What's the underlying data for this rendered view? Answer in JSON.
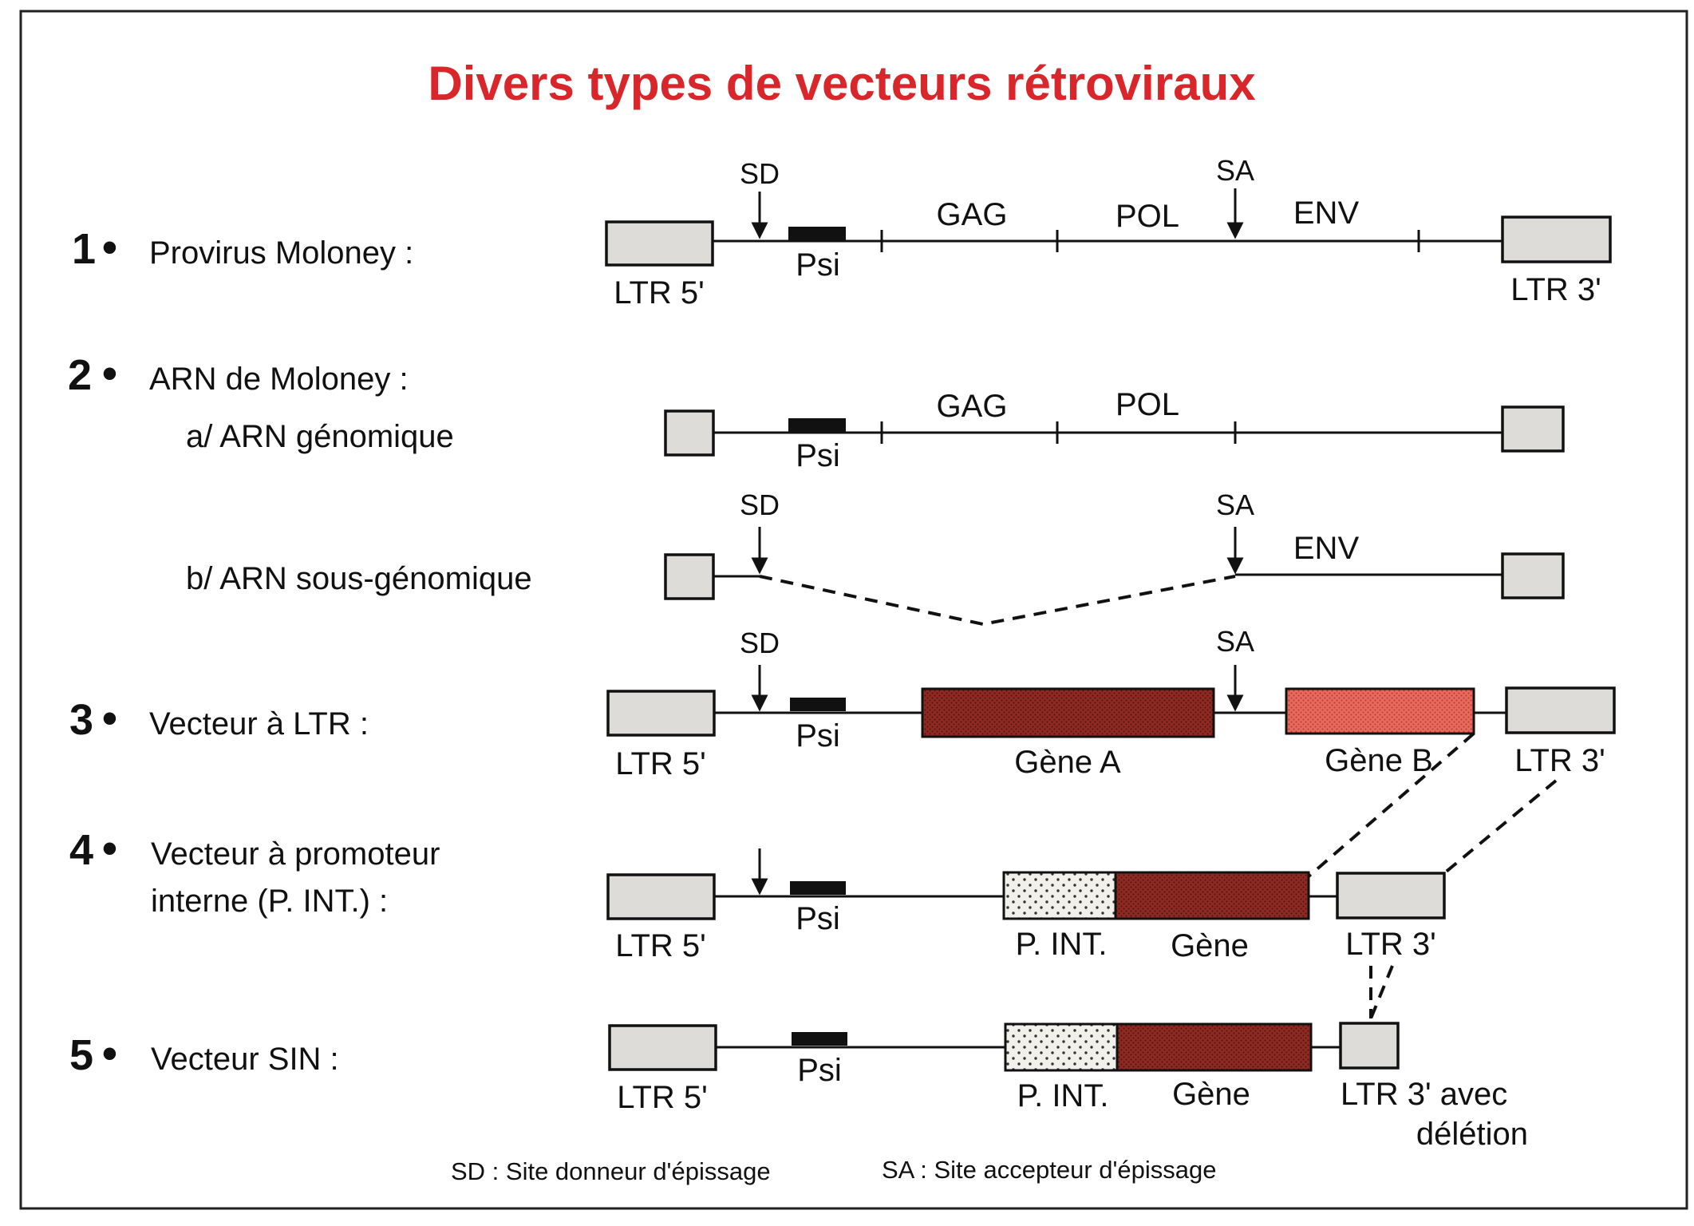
{
  "title": "Divers types de vecteurs rétroviraux",
  "rows": {
    "r1": {
      "number": "1",
      "label": "Provirus Moloney :"
    },
    "r2": {
      "number": "2",
      "label": "ARN de Moloney :",
      "a": "a/  ARN génomique",
      "b": "b/  ARN sous-génomique"
    },
    "r3": {
      "number": "3",
      "label": "Vecteur à LTR :"
    },
    "r4": {
      "number": "4",
      "label_line1": "Vecteur à promoteur",
      "label_line2": "interne (P. INT.) :"
    },
    "r5": {
      "number": "5",
      "label": "Vecteur SIN :"
    }
  },
  "labels": {
    "sd": "SD",
    "sa": "SA",
    "psi": "Psi",
    "gag": "GAG",
    "pol": "POL",
    "env": "ENV",
    "ltr5": "LTR 5'",
    "ltr3": "LTR 3'",
    "gene_a": "Gène A",
    "gene_b": "Gène B",
    "p_int": "P. INT.",
    "gene": "Gène",
    "ltr3_del_line1": "LTR 3' avec",
    "ltr3_del_line2": "délétion"
  },
  "legend": {
    "sd": "SD : Site donneur d'épissage",
    "sa": "SA : Site accepteur d'épissage"
  },
  "colors": {
    "title": "#d8262b",
    "ltr_box": "#dedcd8",
    "gene_dark": "#8e2a22",
    "gene_light": "#e86a5e",
    "promoter": "#f2f0ea"
  }
}
